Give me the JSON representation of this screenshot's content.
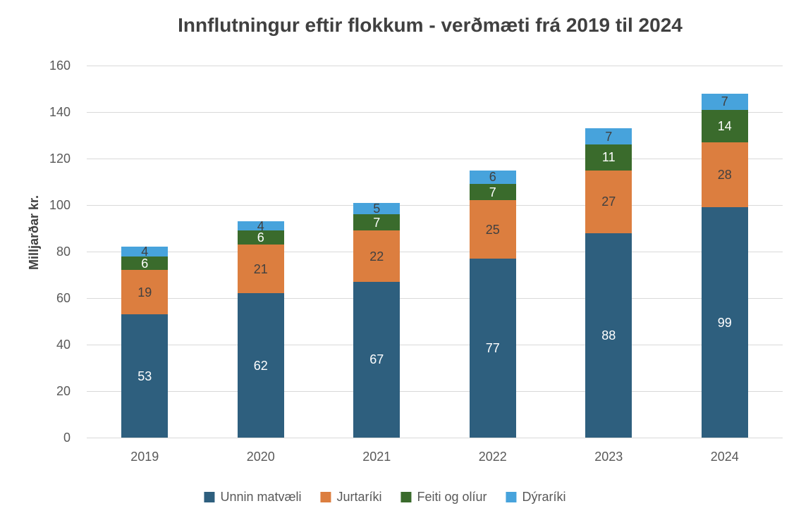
{
  "chart_data": {
    "type": "bar",
    "stacked": true,
    "title": "Innflutningur eftir flokkum - verðmæti frá 2019 til 2024",
    "xlabel": "",
    "ylabel": "Milljarðar kr.",
    "categories": [
      "2019",
      "2020",
      "2021",
      "2022",
      "2023",
      "2024"
    ],
    "series": [
      {
        "name": "Unnin matvæli",
        "color": "#2E5F7E",
        "label_color": "#FFFFFF",
        "values": [
          53,
          62,
          67,
          77,
          88,
          99
        ]
      },
      {
        "name": "Jurtaríki",
        "color": "#DC7E3F",
        "label_color": "#404040",
        "values": [
          19,
          21,
          22,
          25,
          27,
          28
        ]
      },
      {
        "name": "Feiti og olíur",
        "color": "#3A6B2C",
        "label_color": "#FFFFFF",
        "values": [
          6,
          6,
          7,
          7,
          11,
          14
        ]
      },
      {
        "name": "Dýraríki",
        "color": "#47A3DC",
        "label_color": "#404040",
        "values": [
          4,
          4,
          5,
          6,
          7,
          7
        ]
      }
    ],
    "ylim": [
      0,
      160
    ],
    "ytick_step": 20,
    "yticks": [
      0,
      20,
      40,
      60,
      80,
      100,
      120,
      140,
      160
    ],
    "grid": true,
    "legend_position": "bottom"
  },
  "colors": {
    "title_text": "#404040",
    "axis_text": "#595959",
    "gridline": "#D9D9D9",
    "background": "#FFFFFF"
  }
}
